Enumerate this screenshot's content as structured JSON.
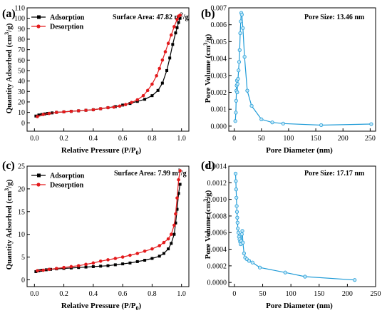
{
  "chart_data": [
    {
      "panel_label": "(a)",
      "type": "line",
      "xlabel": "Relative Pressure (P/P0)",
      "ylabel": "Quantity Adsorbed (cm3/g)",
      "xlim": [
        -0.05,
        1.05
      ],
      "ylim": [
        -8,
        110
      ],
      "xticks": [
        "0.0",
        "0.2",
        "0.4",
        "0.6",
        "0.8",
        "1.0"
      ],
      "xtick_values": [
        0,
        0.2,
        0.4,
        0.6,
        0.8,
        1.0
      ],
      "yticks": [
        "0",
        "10",
        "20",
        "30",
        "40",
        "50",
        "60",
        "70",
        "80",
        "90",
        "100",
        "110"
      ],
      "ytick_values": [
        0,
        10,
        20,
        30,
        40,
        50,
        60,
        70,
        80,
        90,
        100,
        110
      ],
      "annotation": "Surface Area: 47.82 m2/g",
      "legend_position": "top-left",
      "series": [
        {
          "name": "Adsorption",
          "color": "#000000",
          "marker": "square",
          "x": [
            0.01,
            0.03,
            0.05,
            0.07,
            0.09,
            0.12,
            0.15,
            0.2,
            0.25,
            0.3,
            0.35,
            0.4,
            0.45,
            0.5,
            0.55,
            0.6,
            0.65,
            0.7,
            0.75,
            0.8,
            0.84,
            0.87,
            0.9,
            0.92,
            0.94,
            0.96,
            0.97,
            0.98,
            0.99
          ],
          "y": [
            6.5,
            7.5,
            8,
            8.5,
            9,
            9.5,
            10,
            10.5,
            11,
            11.5,
            12,
            12.5,
            13.5,
            14.5,
            15.5,
            17,
            18.5,
            20.5,
            22.5,
            26,
            31,
            38,
            50,
            62,
            75,
            86,
            91,
            96,
            100
          ]
        },
        {
          "name": "Desorption",
          "color": "#e31a1c",
          "marker": "circle",
          "x": [
            0.99,
            0.98,
            0.97,
            0.95,
            0.93,
            0.91,
            0.89,
            0.87,
            0.85,
            0.83,
            0.8,
            0.77,
            0.74,
            0.7,
            0.66,
            0.62,
            0.58,
            0.54,
            0.5,
            0.45,
            0.4,
            0.35,
            0.3,
            0.25,
            0.2,
            0.15,
            0.1,
            0.06,
            0.02
          ],
          "y": [
            103,
            102,
            99,
            92,
            84,
            76,
            68,
            60,
            52,
            45,
            37,
            31,
            26,
            22,
            19.5,
            17.5,
            16,
            15,
            14.5,
            13.5,
            12.5,
            12,
            11.5,
            11,
            10.5,
            10,
            9,
            8,
            6
          ]
        }
      ]
    },
    {
      "panel_label": "(b)",
      "type": "line",
      "xlabel": "Pore Diameter (nm)",
      "ylabel": "Pore Volume (cm3/g)",
      "xlim": [
        -10,
        260
      ],
      "ylim": [
        -0.0003,
        0.007
      ],
      "xticks": [
        "0",
        "50",
        "100",
        "150",
        "200",
        "250"
      ],
      "xtick_values": [
        0,
        50,
        100,
        150,
        200,
        250
      ],
      "yticks": [
        "0.000",
        "0.001",
        "0.002",
        "0.003",
        "0.004",
        "0.005",
        "0.006",
        "0.007"
      ],
      "ytick_values": [
        0,
        0.001,
        0.002,
        0.003,
        0.004,
        0.005,
        0.006,
        0.007
      ],
      "annotation": "Pore Size: 13.46 nm",
      "series": [
        {
          "name": "",
          "color": "#1f9bd7",
          "marker": "circle",
          "x": [
            2,
            3,
            3.5,
            4,
            4.5,
            5,
            5.5,
            6,
            7,
            8,
            9,
            10,
            11,
            12,
            13,
            14,
            16,
            19,
            24,
            32,
            50,
            70,
            90,
            160,
            252
          ],
          "y": [
            0.0003,
            0.0008,
            0.0015,
            0.0021,
            0.0024,
            0.0027,
            0.002,
            0.0025,
            0.0028,
            0.0033,
            0.0038,
            0.0045,
            0.0055,
            0.0062,
            0.0067,
            0.0066,
            0.0058,
            0.0041,
            0.0021,
            0.0012,
            0.0004,
            0.00022,
            0.00015,
            6e-05,
            0.00012
          ]
        }
      ]
    },
    {
      "panel_label": "(c)",
      "type": "line",
      "xlabel": "Relative Pressure (P/P0)",
      "ylabel": "Quantity Adsorbed (cm3/g)",
      "xlim": [
        -0.05,
        1.05
      ],
      "ylim": [
        -1.5,
        25
      ],
      "xticks": [
        "0.0",
        "0.2",
        "0.4",
        "0.6",
        "0.8",
        "1.0"
      ],
      "xtick_values": [
        0,
        0.2,
        0.4,
        0.6,
        0.8,
        1.0
      ],
      "yticks": [
        "0",
        "5",
        "10",
        "15",
        "20",
        "25"
      ],
      "ytick_values": [
        0,
        5,
        10,
        15,
        20,
        25
      ],
      "annotation": "Surface Area: 7.99 m2/g",
      "legend_position": "top-left",
      "series": [
        {
          "name": "Adsorption",
          "color": "#000000",
          "marker": "square",
          "x": [
            0.01,
            0.03,
            0.05,
            0.08,
            0.11,
            0.15,
            0.2,
            0.25,
            0.3,
            0.35,
            0.4,
            0.45,
            0.5,
            0.55,
            0.6,
            0.65,
            0.7,
            0.75,
            0.8,
            0.85,
            0.88,
            0.91,
            0.93,
            0.95,
            0.96,
            0.97,
            0.98,
            0.99
          ],
          "y": [
            1.8,
            2.0,
            2.1,
            2.2,
            2.3,
            2.4,
            2.5,
            2.6,
            2.7,
            2.8,
            2.9,
            3.0,
            3.1,
            3.3,
            3.5,
            3.7,
            4.0,
            4.3,
            4.7,
            5.2,
            5.8,
            6.8,
            8.0,
            10.0,
            12.5,
            15.5,
            19,
            21
          ]
        },
        {
          "name": "Desorption",
          "color": "#e31a1c",
          "marker": "circle",
          "x": [
            0.99,
            0.98,
            0.97,
            0.96,
            0.95,
            0.93,
            0.91,
            0.88,
            0.85,
            0.8,
            0.75,
            0.7,
            0.65,
            0.6,
            0.55,
            0.5,
            0.45,
            0.4,
            0.35,
            0.3,
            0.25,
            0.2,
            0.15,
            0.1,
            0.06,
            0.02
          ],
          "y": [
            24,
            22,
            18,
            14.5,
            12,
            10,
            9,
            8.2,
            7.5,
            6.8,
            6.3,
            5.8,
            5.4,
            5.0,
            4.7,
            4.4,
            4.1,
            3.7,
            3.4,
            3.1,
            2.9,
            2.7,
            2.5,
            2.3,
            2.1,
            2.0
          ]
        }
      ]
    },
    {
      "panel_label": "(d)",
      "type": "line",
      "xlabel": "Pore Diameter (nm)",
      "ylabel": "Pore Volume (cm3/g)",
      "xlim": [
        -10,
        250
      ],
      "ylim": [
        -5e-05,
        0.0014
      ],
      "xticks": [
        "0",
        "50",
        "100",
        "150",
        "200",
        "250"
      ],
      "xtick_values": [
        0,
        50,
        100,
        150,
        200,
        250
      ],
      "yticks": [
        "0.0000",
        "0.0002",
        "0.0004",
        "0.0006",
        "0.0008",
        "0.0010",
        "0.0012",
        "0.0014"
      ],
      "ytick_values": [
        0,
        0.0002,
        0.0004,
        0.0006,
        0.0008,
        0.001,
        0.0012,
        0.0014
      ],
      "annotation": "Pore Size: 17.17 nm",
      "series": [
        {
          "name": "",
          "color": "#1f9bd7",
          "marker": "circle",
          "x": [
            2,
            2.5,
            3,
            3.5,
            4,
            4.5,
            5,
            5.5,
            6,
            7,
            8,
            9,
            10,
            11,
            12,
            13,
            14,
            15,
            17,
            19,
            22,
            26,
            32,
            45,
            90,
            125,
            213
          ],
          "y": [
            0.00131,
            0.00122,
            0.00112,
            0.00102,
            0.00092,
            0.00085,
            0.00078,
            0.00072,
            0.00065,
            0.0006,
            0.00055,
            0.00052,
            0.00049,
            0.00046,
            0.0005,
            0.00058,
            0.00062,
            0.00048,
            0.00035,
            0.0003,
            0.00028,
            0.00026,
            0.00024,
            0.00018,
            0.00012,
            7e-05,
            3e-05
          ]
        }
      ]
    }
  ]
}
